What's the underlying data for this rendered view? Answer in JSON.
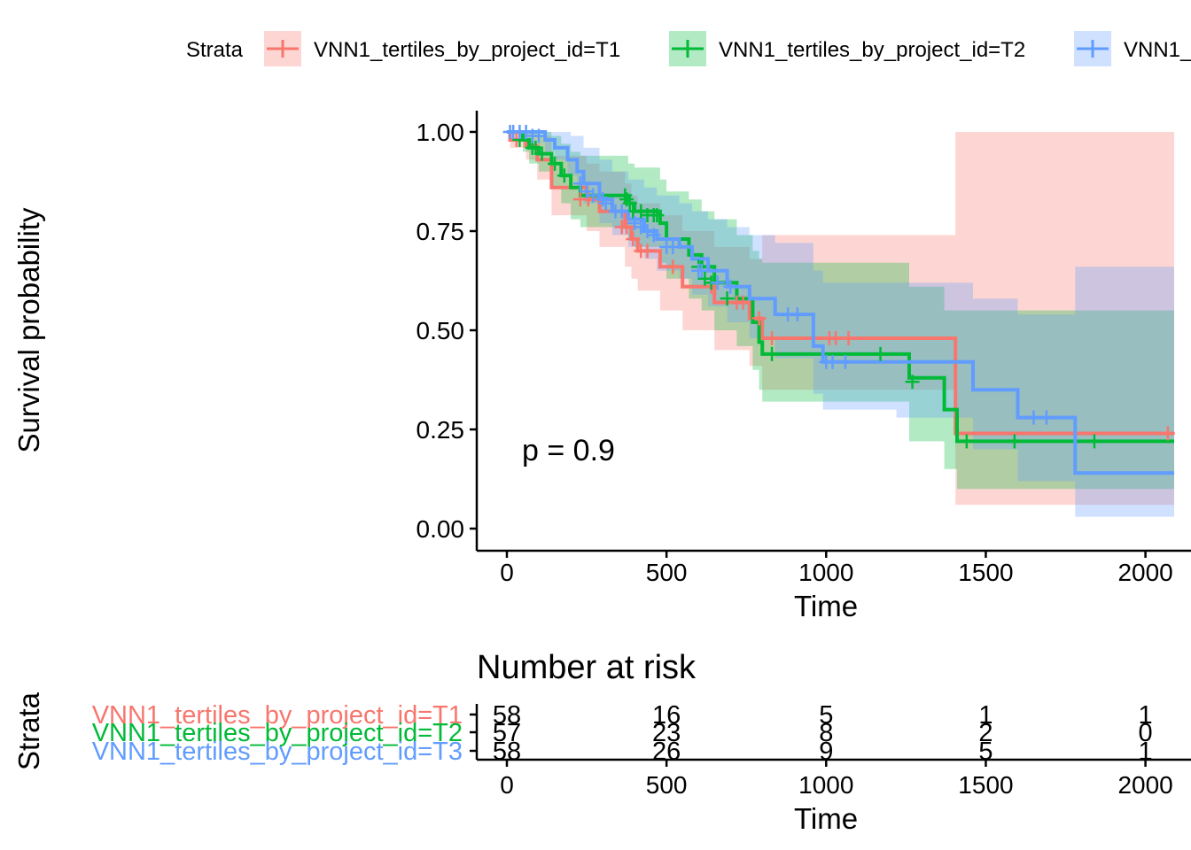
{
  "chart_data": [
    {
      "type": "line",
      "subtype": "kaplan-meier",
      "title": "",
      "xlabel": "Time",
      "ylabel": "Survival probability",
      "xlim": [
        -90,
        2090
      ],
      "ylim": [
        -0.05,
        1.05
      ],
      "x_ticks": [
        0,
        500,
        1000,
        1500,
        2000
      ],
      "y_ticks": [
        0.0,
        0.25,
        0.5,
        0.75,
        1.0
      ],
      "y_tick_labels": [
        "0.00",
        "0.25",
        "0.50",
        "0.75",
        "1.00"
      ],
      "annotation": "p = 0.9",
      "legend": {
        "title": "Strata",
        "position": "top",
        "entries": [
          "VNN1_tertiles_by_project_id=T1",
          "VNN1_tertiles_by_project_id=T2",
          "VNN1_tertiles_by_project_id=T3"
        ]
      },
      "series": [
        {
          "name": "VNN1_tertiles_by_project_id=T1",
          "color": "#F8766D",
          "steps": [
            [
              0,
              1.0
            ],
            [
              10,
              0.98
            ],
            [
              60,
              0.965
            ],
            [
              95,
              0.93
            ],
            [
              140,
              0.86
            ],
            [
              250,
              0.83
            ],
            [
              290,
              0.8
            ],
            [
              370,
              0.76
            ],
            [
              390,
              0.73
            ],
            [
              410,
              0.7
            ],
            [
              480,
              0.66
            ],
            [
              550,
              0.61
            ],
            [
              650,
              0.57
            ],
            [
              760,
              0.53
            ],
            [
              800,
              0.48
            ],
            [
              1405,
              0.24
            ],
            [
              2090,
              0.24
            ]
          ],
          "lower": [
            [
              0,
              1.0
            ],
            [
              10,
              0.96
            ],
            [
              60,
              0.93
            ],
            [
              95,
              0.88
            ],
            [
              140,
              0.79
            ],
            [
              250,
              0.75
            ],
            [
              290,
              0.71
            ],
            [
              370,
              0.66
            ],
            [
              390,
              0.63
            ],
            [
              410,
              0.6
            ],
            [
              480,
              0.55
            ],
            [
              550,
              0.5
            ],
            [
              650,
              0.45
            ],
            [
              760,
              0.41
            ],
            [
              800,
              0.35
            ],
            [
              1405,
              0.06
            ],
            [
              2090,
              0.06
            ]
          ],
          "upper": [
            [
              0,
              1.0
            ],
            [
              10,
              1.0
            ],
            [
              95,
              0.99
            ],
            [
              140,
              0.94
            ],
            [
              250,
              0.92
            ],
            [
              290,
              0.9
            ],
            [
              370,
              0.87
            ],
            [
              390,
              0.84
            ],
            [
              410,
              0.82
            ],
            [
              480,
              0.79
            ],
            [
              550,
              0.75
            ],
            [
              650,
              0.71
            ],
            [
              760,
              0.68
            ],
            [
              800,
              0.74
            ],
            [
              1405,
              1.0
            ],
            [
              2090,
              1.0
            ]
          ],
          "censor": [
            [
              30,
              0.98
            ],
            [
              230,
              0.83
            ],
            [
              255,
              0.83
            ],
            [
              360,
              0.76
            ],
            [
              375,
              0.76
            ],
            [
              395,
              0.73
            ],
            [
              420,
              0.7
            ],
            [
              440,
              0.7
            ],
            [
              520,
              0.66
            ],
            [
              640,
              0.61
            ],
            [
              720,
              0.57
            ],
            [
              740,
              0.57
            ],
            [
              790,
              0.53
            ],
            [
              830,
              0.48
            ],
            [
              1010,
              0.48
            ],
            [
              1030,
              0.48
            ],
            [
              1070,
              0.48
            ],
            [
              2070,
              0.24
            ]
          ]
        },
        {
          "name": "VNN1_tertiles_by_project_id=T2",
          "color": "#00BA38",
          "steps": [
            [
              0,
              1.0
            ],
            [
              50,
              0.98
            ],
            [
              70,
              0.96
            ],
            [
              100,
              0.945
            ],
            [
              140,
              0.92
            ],
            [
              170,
              0.89
            ],
            [
              200,
              0.86
            ],
            [
              230,
              0.84
            ],
            [
              380,
              0.82
            ],
            [
              400,
              0.8
            ],
            [
              480,
              0.77
            ],
            [
              500,
              0.73
            ],
            [
              570,
              0.69
            ],
            [
              610,
              0.66
            ],
            [
              650,
              0.62
            ],
            [
              720,
              0.58
            ],
            [
              770,
              0.52
            ],
            [
              790,
              0.47
            ],
            [
              800,
              0.44
            ],
            [
              1260,
              0.38
            ],
            [
              1370,
              0.3
            ],
            [
              1410,
              0.22
            ],
            [
              2090,
              0.22
            ]
          ],
          "lower": [
            [
              0,
              1.0
            ],
            [
              50,
              0.95
            ],
            [
              70,
              0.92
            ],
            [
              100,
              0.9
            ],
            [
              140,
              0.86
            ],
            [
              170,
              0.82
            ],
            [
              200,
              0.78
            ],
            [
              230,
              0.76
            ],
            [
              380,
              0.73
            ],
            [
              400,
              0.71
            ],
            [
              480,
              0.67
            ],
            [
              500,
              0.63
            ],
            [
              570,
              0.58
            ],
            [
              610,
              0.55
            ],
            [
              650,
              0.5
            ],
            [
              720,
              0.46
            ],
            [
              770,
              0.4
            ],
            [
              790,
              0.35
            ],
            [
              800,
              0.32
            ],
            [
              1260,
              0.22
            ],
            [
              1370,
              0.15
            ],
            [
              1410,
              0.1
            ],
            [
              2090,
              0.1
            ]
          ],
          "upper": [
            [
              0,
              1.0
            ],
            [
              140,
              0.99
            ],
            [
              170,
              0.97
            ],
            [
              200,
              0.95
            ],
            [
              230,
              0.94
            ],
            [
              380,
              0.92
            ],
            [
              400,
              0.91
            ],
            [
              480,
              0.88
            ],
            [
              500,
              0.85
            ],
            [
              570,
              0.83
            ],
            [
              610,
              0.8
            ],
            [
              650,
              0.78
            ],
            [
              720,
              0.74
            ],
            [
              770,
              0.7
            ],
            [
              790,
              0.68
            ],
            [
              800,
              0.67
            ],
            [
              1260,
              0.61
            ],
            [
              1370,
              0.55
            ],
            [
              1410,
              0.55
            ],
            [
              2090,
              0.55
            ]
          ],
          "censor": [
            [
              40,
              0.98
            ],
            [
              80,
              0.96
            ],
            [
              90,
              0.96
            ],
            [
              110,
              0.945
            ],
            [
              150,
              0.92
            ],
            [
              180,
              0.89
            ],
            [
              370,
              0.84
            ],
            [
              375,
              0.83
            ],
            [
              385,
              0.82
            ],
            [
              395,
              0.8
            ],
            [
              420,
              0.8
            ],
            [
              440,
              0.79
            ],
            [
              460,
              0.79
            ],
            [
              470,
              0.79
            ],
            [
              600,
              0.66
            ],
            [
              620,
              0.63
            ],
            [
              640,
              0.62
            ],
            [
              690,
              0.58
            ],
            [
              830,
              0.44
            ],
            [
              1170,
              0.44
            ],
            [
              1270,
              0.37
            ],
            [
              1440,
              0.22
            ],
            [
              1590,
              0.22
            ],
            [
              1840,
              0.22
            ]
          ]
        },
        {
          "name": "VNN1_tertiles_by_project_id=T3",
          "color": "#619CFF",
          "steps": [
            [
              0,
              1.0
            ],
            [
              120,
              0.98
            ],
            [
              150,
              0.96
            ],
            [
              190,
              0.93
            ],
            [
              220,
              0.9
            ],
            [
              240,
              0.87
            ],
            [
              290,
              0.83
            ],
            [
              330,
              0.8
            ],
            [
              380,
              0.78
            ],
            [
              430,
              0.75
            ],
            [
              470,
              0.73
            ],
            [
              540,
              0.71
            ],
            [
              580,
              0.68
            ],
            [
              630,
              0.65
            ],
            [
              690,
              0.61
            ],
            [
              760,
              0.58
            ],
            [
              840,
              0.54
            ],
            [
              960,
              0.46
            ],
            [
              990,
              0.42
            ],
            [
              1220,
              0.42
            ],
            [
              1460,
              0.35
            ],
            [
              1600,
              0.28
            ],
            [
              1780,
              0.14
            ],
            [
              2090,
              0.14
            ]
          ],
          "lower": [
            [
              0,
              1.0
            ],
            [
              120,
              0.95
            ],
            [
              150,
              0.93
            ],
            [
              190,
              0.89
            ],
            [
              220,
              0.86
            ],
            [
              240,
              0.82
            ],
            [
              290,
              0.77
            ],
            [
              330,
              0.74
            ],
            [
              380,
              0.71
            ],
            [
              430,
              0.68
            ],
            [
              470,
              0.65
            ],
            [
              540,
              0.63
            ],
            [
              580,
              0.59
            ],
            [
              630,
              0.56
            ],
            [
              690,
              0.52
            ],
            [
              760,
              0.48
            ],
            [
              840,
              0.43
            ],
            [
              960,
              0.34
            ],
            [
              990,
              0.3
            ],
            [
              1220,
              0.28
            ],
            [
              1460,
              0.2
            ],
            [
              1600,
              0.12
            ],
            [
              1780,
              0.03
            ],
            [
              2090,
              0.03
            ]
          ],
          "upper": [
            [
              0,
              1.0
            ],
            [
              200,
              0.99
            ],
            [
              240,
              0.96
            ],
            [
              290,
              0.93
            ],
            [
              330,
              0.9
            ],
            [
              380,
              0.88
            ],
            [
              430,
              0.86
            ],
            [
              470,
              0.84
            ],
            [
              540,
              0.82
            ],
            [
              580,
              0.8
            ],
            [
              630,
              0.78
            ],
            [
              690,
              0.76
            ],
            [
              760,
              0.74
            ],
            [
              840,
              0.72
            ],
            [
              960,
              0.65
            ],
            [
              990,
              0.62
            ],
            [
              1220,
              0.62
            ],
            [
              1460,
              0.58
            ],
            [
              1600,
              0.54
            ],
            [
              1780,
              0.66
            ],
            [
              2090,
              0.66
            ]
          ],
          "censor": [
            [
              10,
              1.0
            ],
            [
              20,
              1.0
            ],
            [
              40,
              1.0
            ],
            [
              60,
              1.0
            ],
            [
              80,
              0.99
            ],
            [
              100,
              0.99
            ],
            [
              230,
              0.87
            ],
            [
              250,
              0.85
            ],
            [
              270,
              0.84
            ],
            [
              300,
              0.83
            ],
            [
              310,
              0.82
            ],
            [
              340,
              0.8
            ],
            [
              360,
              0.8
            ],
            [
              400,
              0.77
            ],
            [
              420,
              0.76
            ],
            [
              440,
              0.75
            ],
            [
              460,
              0.74
            ],
            [
              500,
              0.71
            ],
            [
              520,
              0.71
            ],
            [
              600,
              0.65
            ],
            [
              610,
              0.65
            ],
            [
              660,
              0.62
            ],
            [
              700,
              0.61
            ],
            [
              880,
              0.54
            ],
            [
              910,
              0.54
            ],
            [
              1000,
              0.42
            ],
            [
              1020,
              0.42
            ],
            [
              1060,
              0.42
            ],
            [
              1650,
              0.28
            ],
            [
              1690,
              0.28
            ]
          ]
        }
      ]
    },
    {
      "type": "table",
      "title": "Number at risk",
      "xlabel": "Time",
      "ylabel": "Strata",
      "x_ticks": [
        0,
        500,
        1000,
        1500,
        2000
      ],
      "rows": [
        {
          "label": "VNN1_tertiles_by_project_id=T1",
          "color": "#F8766D",
          "values": [
            58,
            16,
            5,
            1,
            1
          ]
        },
        {
          "label": "VNN1_tertiles_by_project_id=T2",
          "color": "#00BA38",
          "values": [
            57,
            23,
            8,
            2,
            0
          ]
        },
        {
          "label": "VNN1_tertiles_by_project_id=T3",
          "color": "#619CFF",
          "values": [
            58,
            26,
            9,
            5,
            1
          ]
        }
      ]
    }
  ]
}
